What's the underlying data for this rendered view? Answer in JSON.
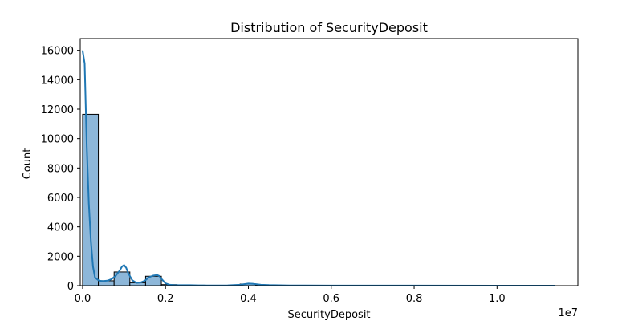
{
  "chart_data": {
    "type": "bar",
    "title": "Distribution of SecurityDeposit",
    "xlabel": "SecurityDeposit",
    "ylabel": "Count",
    "x_offset_label": "1e7",
    "xlim": [
      -0.0057,
      1.195
    ],
    "ylim": [
      0,
      16800
    ],
    "x_ticks": [
      0.0,
      0.2,
      0.4,
      0.6,
      0.8,
      1.0
    ],
    "x_tick_labels": [
      "0.0",
      "0.2",
      "0.4",
      "0.6",
      "0.8",
      "1.0"
    ],
    "y_ticks": [
      0,
      2000,
      4000,
      6000,
      8000,
      10000,
      12000,
      14000,
      16000
    ],
    "y_tick_labels": [
      "0",
      "2000",
      "4000",
      "6000",
      "8000",
      "10000",
      "12000",
      "14000",
      "16000"
    ],
    "bins": [
      {
        "start": 0.0,
        "end": 0.038,
        "count": 11650
      },
      {
        "start": 0.038,
        "end": 0.076,
        "count": 330
      },
      {
        "start": 0.076,
        "end": 0.114,
        "count": 930
      },
      {
        "start": 0.114,
        "end": 0.152,
        "count": 200
      },
      {
        "start": 0.152,
        "end": 0.19,
        "count": 640
      },
      {
        "start": 0.19,
        "end": 0.228,
        "count": 70
      },
      {
        "start": 0.228,
        "end": 0.266,
        "count": 40
      },
      {
        "start": 0.266,
        "end": 0.304,
        "count": 20
      },
      {
        "start": 0.38,
        "end": 0.418,
        "count": 110
      },
      {
        "start": 0.418,
        "end": 0.456,
        "count": 50
      }
    ],
    "kde": {
      "x": [
        0.0,
        0.005,
        0.01,
        0.015,
        0.02,
        0.025,
        0.03,
        0.04,
        0.05,
        0.06,
        0.07,
        0.08,
        0.09,
        0.095,
        0.1,
        0.105,
        0.11,
        0.12,
        0.13,
        0.14,
        0.15,
        0.16,
        0.17,
        0.18,
        0.185,
        0.19,
        0.2,
        0.21,
        0.22,
        0.24,
        0.26,
        0.28,
        0.3,
        0.35,
        0.38,
        0.4,
        0.41,
        0.43,
        0.45,
        0.5,
        0.6,
        0.8,
        1.0,
        1.14
      ],
      "y": [
        16000,
        15100,
        9500,
        5600,
        3000,
        1300,
        550,
        330,
        310,
        340,
        450,
        680,
        1050,
        1300,
        1400,
        1220,
        860,
        360,
        190,
        210,
        330,
        570,
        680,
        720,
        660,
        470,
        160,
        60,
        40,
        30,
        30,
        20,
        15,
        20,
        60,
        140,
        130,
        60,
        40,
        15,
        5,
        3,
        2,
        2
      ]
    },
    "bar_color": "#8db7d9",
    "bar_edge_color": "#000000",
    "line_color": "#1f77b4",
    "grid": false,
    "legend": "none"
  }
}
